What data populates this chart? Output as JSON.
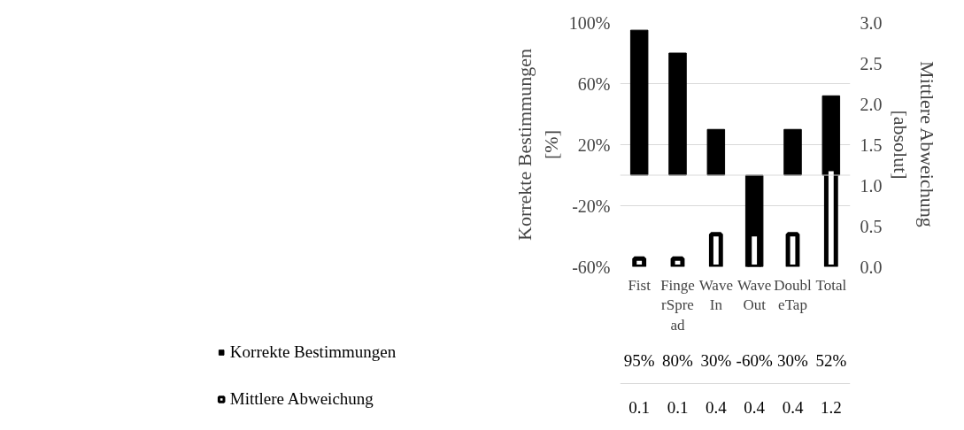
{
  "chart_data": {
    "type": "bar",
    "categories": [
      "Fist",
      "Finge\nrSpre\nad",
      "Wave\nIn",
      "Wave\nOut",
      "Doubl\neTap",
      "Total"
    ],
    "ylabel": "Korrekte Bestimmungen\n[%]",
    "y2label": "Mittlere Abweichung\n[absolut]",
    "series": [
      {
        "name": "Korrekte Bestimmungen",
        "color": "#000000",
        "values": [
          95,
          80,
          30,
          -60,
          30,
          52
        ],
        "value_labels": [
          "95%",
          "80%",
          "30%",
          "-60%",
          "30%",
          "52%"
        ]
      },
      {
        "name": "Mittlere Abweichung",
        "color": "#ffffff",
        "axis": "y2",
        "values": [
          0.1,
          0.1,
          0.4,
          0.4,
          0.4,
          1.2
        ],
        "value_labels": [
          "0.1",
          "0.1",
          "0.4",
          "0.4",
          "0.4",
          "1.2"
        ]
      }
    ],
    "ylim": [
      -60,
      100
    ],
    "yticks": [
      {
        "value": -60,
        "label": "-60%"
      },
      {
        "value": -20,
        "label": "-20%"
      },
      {
        "value": 20,
        "label": "20%"
      },
      {
        "value": 60,
        "label": "60%"
      },
      {
        "value": 100,
        "label": "100%"
      }
    ],
    "y2lim": [
      0,
      3
    ],
    "y2ticks": [
      {
        "value": 0,
        "label": "0.0"
      },
      {
        "value": 0.5,
        "label": "0.5"
      },
      {
        "value": 1,
        "label": "1.0"
      },
      {
        "value": 1.5,
        "label": "1.5"
      },
      {
        "value": 2,
        "label": "2.0"
      },
      {
        "value": 2.5,
        "label": "2.5"
      },
      {
        "value": 3,
        "label": "3.0"
      }
    ],
    "grid": "y",
    "legend": "bottom"
  }
}
